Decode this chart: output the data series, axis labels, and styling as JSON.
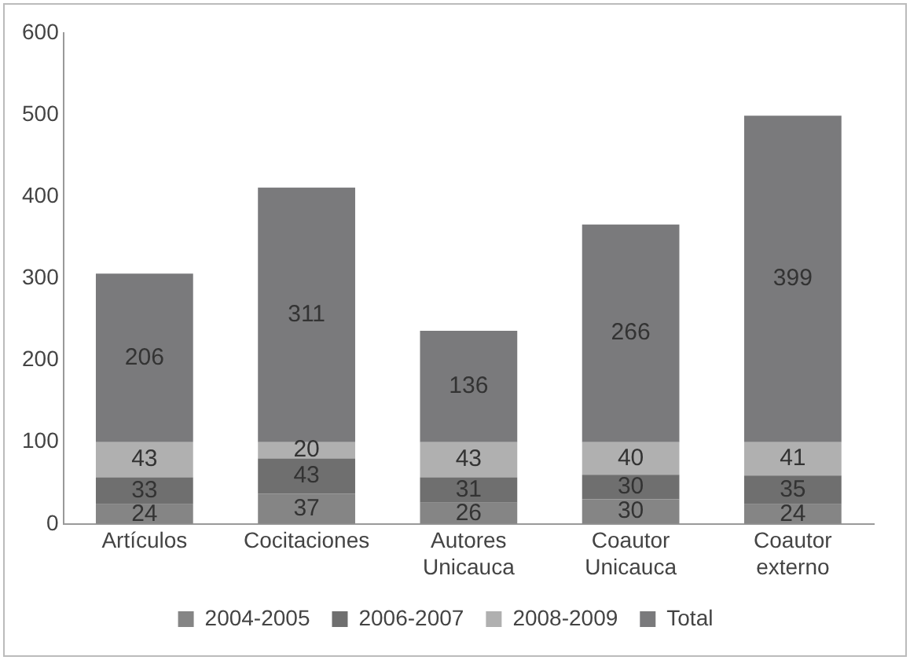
{
  "chart_data": {
    "type": "bar",
    "stacked": true,
    "categories": [
      "Artículos",
      "Cocitaciones",
      "Autores Unicauca",
      "Coautor Unicauca",
      "Coautor externo"
    ],
    "series": [
      {
        "name": "2004-2005",
        "color": "#858585",
        "values": [
          24,
          37,
          26,
          30,
          24
        ]
      },
      {
        "name": "2006-2007",
        "color": "#6f6f6f",
        "values": [
          33,
          43,
          31,
          30,
          35
        ]
      },
      {
        "name": "2008-2009",
        "color": "#b0b0b0",
        "values": [
          43,
          20,
          43,
          40,
          41
        ]
      },
      {
        "name": "Total",
        "color": "#7a7a7c",
        "values": [
          206,
          311,
          136,
          266,
          399
        ]
      }
    ],
    "ylim": [
      0,
      600
    ],
    "yticks": [
      0,
      100,
      200,
      300,
      400,
      500,
      600
    ],
    "grid": false,
    "legend": "bottom",
    "data_labels": true
  }
}
